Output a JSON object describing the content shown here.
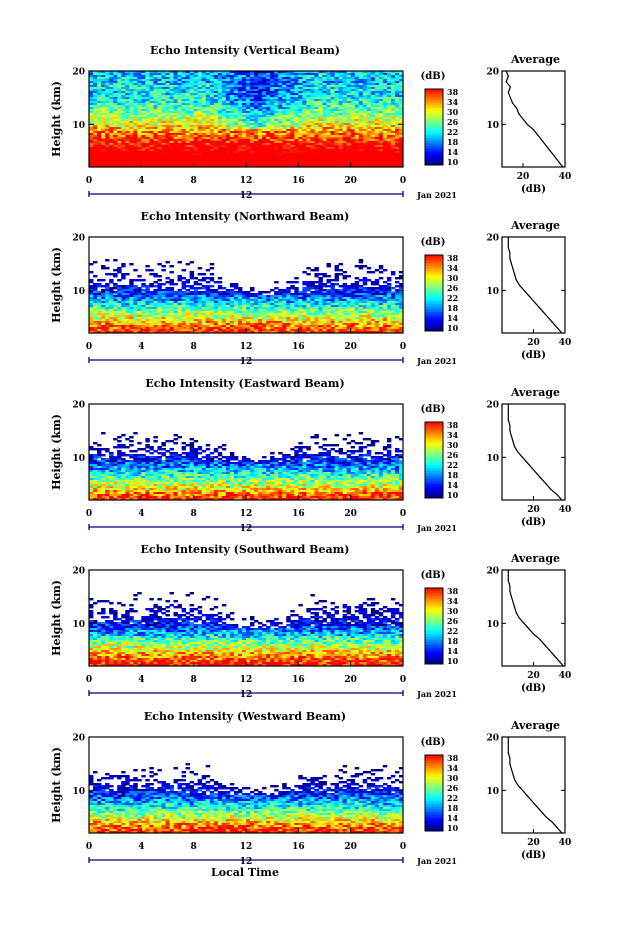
{
  "chart_data": [
    {
      "type": "heatmap",
      "title": "Echo Intensity (Vertical Beam)",
      "ylabel": "Height (km)",
      "xlabel": "Local Time",
      "x_ticks": [
        "0",
        "4",
        "8",
        "12",
        "16",
        "20",
        "0"
      ],
      "y_ticks": [
        "20",
        "10"
      ],
      "date_label": "12",
      "month_label": "Jan 2021",
      "colorbar_unit": "(dB)",
      "colorbar_ticks": [
        "38",
        "34",
        "30",
        "26",
        "22",
        "18",
        "14",
        "10"
      ],
      "xlim": [
        0,
        24
      ],
      "ylim": [
        2,
        20
      ],
      "clim": [
        10,
        38
      ],
      "profile": {
        "title": "Average",
        "xlabel": "(dB)",
        "x_ticks": [
          "20",
          "40"
        ],
        "y_ticks": [
          "20",
          "10"
        ],
        "xlim": [
          10,
          40
        ],
        "height_km": [
          2,
          3,
          4,
          5,
          6,
          7,
          8,
          9,
          10,
          11,
          12,
          13,
          14,
          15,
          16,
          17,
          18,
          19,
          20
        ],
        "mean_db": [
          39,
          37,
          35,
          33,
          31,
          29,
          27,
          25,
          22,
          20,
          18,
          17,
          15,
          14,
          13,
          14,
          12,
          13,
          12
        ]
      }
    },
    {
      "type": "heatmap",
      "title": "Echo Intensity (Northward Beam)",
      "ylabel": "Height (km)",
      "x_ticks": [
        "0",
        "4",
        "8",
        "12",
        "16",
        "20",
        "0"
      ],
      "y_ticks": [
        "20",
        "10"
      ],
      "date_label": "12",
      "month_label": "Jan 2021",
      "colorbar_unit": "(dB)",
      "colorbar_ticks": [
        "38",
        "34",
        "30",
        "26",
        "22",
        "18",
        "14",
        "10"
      ],
      "xlim": [
        0,
        24
      ],
      "ylim": [
        2,
        20
      ],
      "clim": [
        10,
        38
      ],
      "profile": {
        "title": "Average",
        "xlabel": "(dB)",
        "x_ticks": [
          "20",
          "40"
        ],
        "y_ticks": [
          "20",
          "10"
        ],
        "xlim": [
          0,
          40
        ],
        "height_km": [
          2,
          3,
          4,
          5,
          6,
          7,
          8,
          9,
          10,
          11,
          12,
          13,
          14,
          15,
          16,
          17,
          18,
          19,
          20
        ],
        "mean_db": [
          38,
          35,
          32,
          29,
          26,
          23,
          20,
          17,
          14,
          11,
          9,
          8,
          7,
          6,
          5,
          5,
          4,
          4,
          4
        ]
      }
    },
    {
      "type": "heatmap",
      "title": "Echo Intensity (Eastward Beam)",
      "ylabel": "Height (km)",
      "x_ticks": [
        "0",
        "4",
        "8",
        "12",
        "16",
        "20",
        "0"
      ],
      "y_ticks": [
        "20",
        "10"
      ],
      "date_label": "12",
      "month_label": "Jan 2021",
      "colorbar_unit": "(dB)",
      "colorbar_ticks": [
        "38",
        "34",
        "30",
        "26",
        "22",
        "18",
        "14",
        "10"
      ],
      "xlim": [
        0,
        24
      ],
      "ylim": [
        2,
        20
      ],
      "clim": [
        10,
        38
      ],
      "profile": {
        "title": "Average",
        "xlabel": "(dB)",
        "x_ticks": [
          "20",
          "40"
        ],
        "y_ticks": [
          "20",
          "10"
        ],
        "xlim": [
          0,
          40
        ],
        "height_km": [
          2,
          3,
          4,
          5,
          6,
          7,
          8,
          9,
          10,
          11,
          12,
          13,
          14,
          15,
          16,
          17,
          18,
          19,
          20
        ],
        "mean_db": [
          38,
          35,
          31,
          28,
          25,
          22,
          19,
          16,
          13,
          10,
          8,
          7,
          6,
          5,
          5,
          4,
          4,
          4,
          4
        ]
      }
    },
    {
      "type": "heatmap",
      "title": "Echo Intensity (Southward Beam)",
      "ylabel": "Height (km)",
      "x_ticks": [
        "0",
        "4",
        "8",
        "12",
        "16",
        "20",
        "0"
      ],
      "y_ticks": [
        "20",
        "10"
      ],
      "date_label": "12",
      "month_label": "Jan 2021",
      "colorbar_unit": "(dB)",
      "colorbar_ticks": [
        "38",
        "34",
        "30",
        "26",
        "22",
        "18",
        "14",
        "10"
      ],
      "xlim": [
        0,
        24
      ],
      "ylim": [
        2,
        20
      ],
      "clim": [
        10,
        38
      ],
      "profile": {
        "title": "Average",
        "xlabel": "(dB)",
        "x_ticks": [
          "20",
          "40"
        ],
        "y_ticks": [
          "20",
          "10"
        ],
        "xlim": [
          0,
          40
        ],
        "height_km": [
          2,
          3,
          4,
          5,
          6,
          7,
          8,
          9,
          10,
          11,
          12,
          13,
          14,
          15,
          16,
          17,
          18,
          19,
          20
        ],
        "mean_db": [
          39,
          36,
          33,
          30,
          27,
          24,
          20,
          17,
          14,
          11,
          9,
          8,
          7,
          6,
          5,
          5,
          4,
          4,
          4
        ]
      }
    },
    {
      "type": "heatmap",
      "title": "Echo Intensity (Westward Beam)",
      "ylabel": "Height (km)",
      "x_ticks": [
        "0",
        "4",
        "8",
        "12",
        "16",
        "20",
        "0"
      ],
      "y_ticks": [
        "20",
        "10"
      ],
      "date_label": "12",
      "month_label": "Jan 2021",
      "colorbar_unit": "(dB)",
      "colorbar_ticks": [
        "38",
        "34",
        "30",
        "26",
        "22",
        "18",
        "14",
        "10"
      ],
      "xlim": [
        0,
        24
      ],
      "ylim": [
        2,
        20
      ],
      "clim": [
        10,
        38
      ],
      "profile": {
        "title": "Average",
        "xlabel": "(dB)",
        "x_ticks": [
          "20",
          "40"
        ],
        "y_ticks": [
          "20",
          "10"
        ],
        "xlim": [
          0,
          40
        ],
        "height_km": [
          2,
          3,
          4,
          5,
          6,
          7,
          8,
          9,
          10,
          11,
          12,
          13,
          14,
          15,
          16,
          17,
          18,
          19,
          20
        ],
        "mean_db": [
          38,
          35,
          32,
          28,
          25,
          22,
          19,
          16,
          13,
          10,
          8,
          7,
          6,
          5,
          5,
          4,
          4,
          4,
          4
        ]
      }
    }
  ],
  "footer": {
    "xlabel": "Local Time"
  },
  "colors": {
    "jet": [
      "#00007f",
      "#0000ff",
      "#007fff",
      "#00ffff",
      "#7fff7f",
      "#ffff00",
      "#ff7f00",
      "#ff0000"
    ],
    "date_axis": "#000080"
  }
}
